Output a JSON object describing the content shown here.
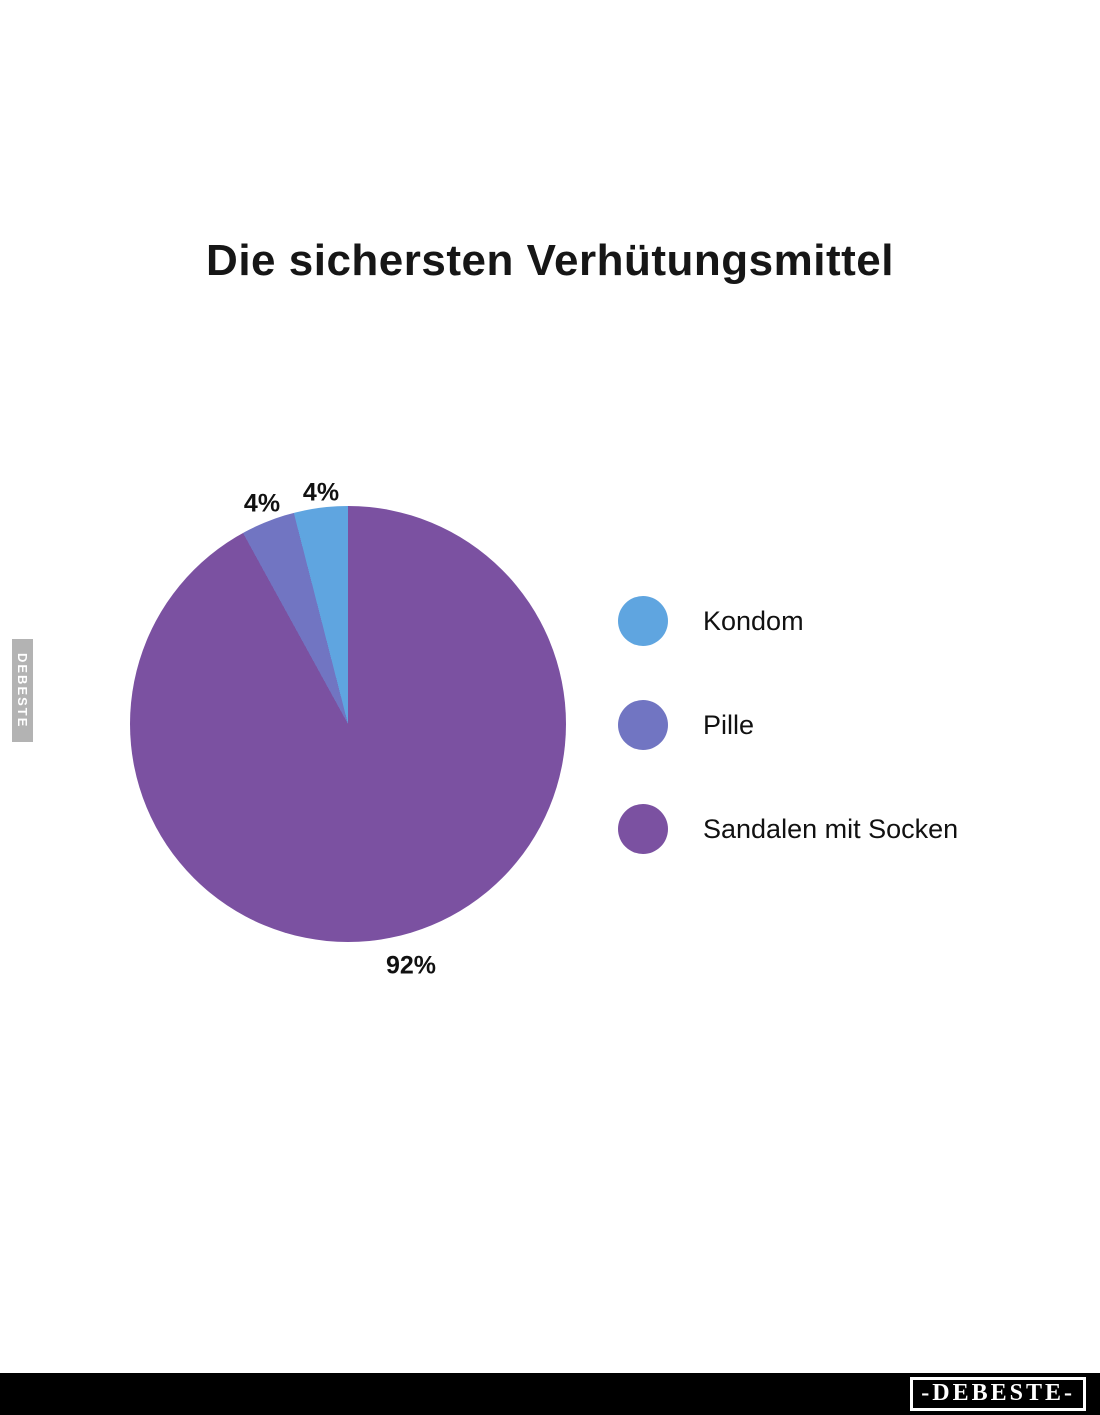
{
  "page": {
    "background_color": "#ffffff"
  },
  "chart_data": {
    "type": "pie",
    "title": "Die sichersten Verhütungsmittel",
    "legend_position": "right",
    "start_angle": 90,
    "direction": "counterclockwise",
    "slices": [
      {
        "label": "Kondom",
        "value": 4,
        "pct_label": "4%",
        "color": "#5FA5E0"
      },
      {
        "label": "Pille",
        "value": 4,
        "pct_label": "4%",
        "color": "#7175C2"
      },
      {
        "label": "Sandalen mit Socken",
        "value": 92,
        "pct_label": "92%",
        "color": "#7B51A1"
      }
    ]
  },
  "watermarks": {
    "side_text": "DEBESTE",
    "footer_logo": "-DEBESTE-",
    "side_bg_color": "#b3b3b3",
    "footer_bg_color": "#000000"
  }
}
